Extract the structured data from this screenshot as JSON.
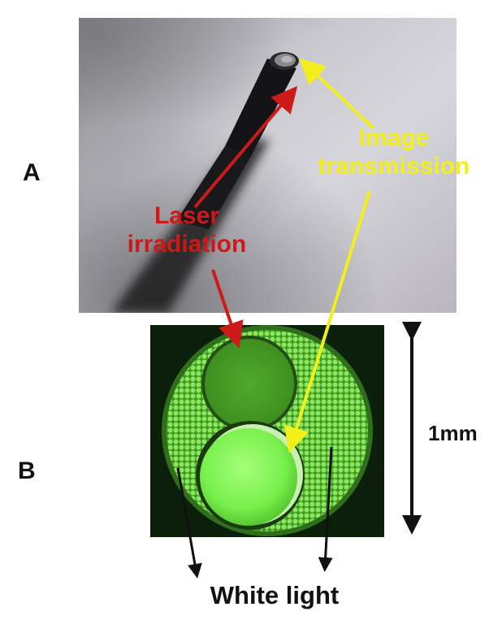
{
  "panels": {
    "a": {
      "letter": "A"
    },
    "b": {
      "letter": "B"
    }
  },
  "labels": {
    "laser_line1": "Laser",
    "laser_line2": "irradiation",
    "image_line1": "Image",
    "image_line2": "transmission",
    "scale": "1mm",
    "white_light": "White light"
  },
  "colors": {
    "laser_arrow": "#cc1a1a",
    "image_arrow": "#f2ef1a",
    "white_light_arrow": "#111111",
    "fiber_green": "#5fd23a"
  }
}
